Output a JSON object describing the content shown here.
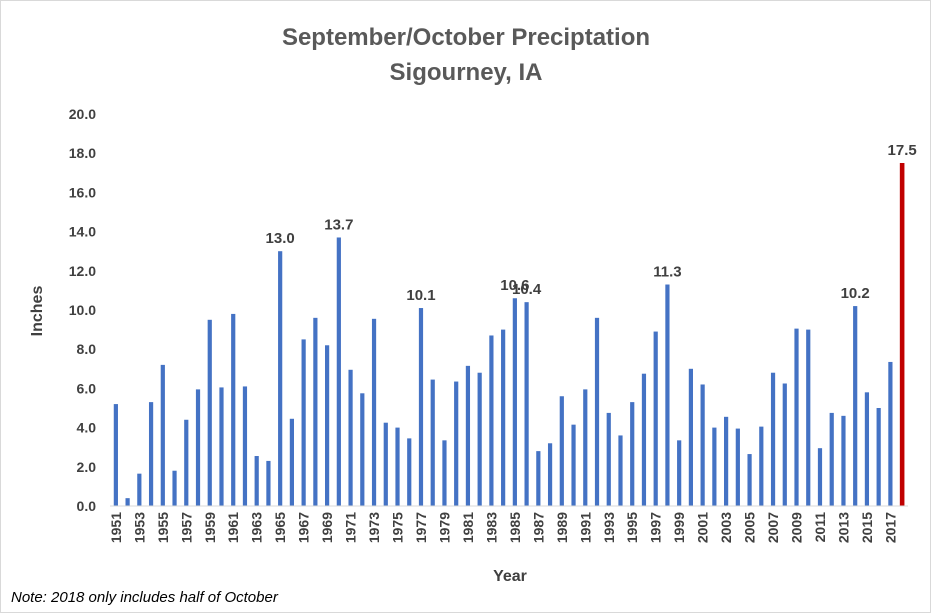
{
  "chart_data": {
    "type": "bar",
    "title": "September/October Preciptation",
    "subtitle": "Sigourney, IA",
    "xlabel": "Year",
    "ylabel": "Inches",
    "ylim": [
      0,
      20
    ],
    "yticks": [
      "0.0",
      "2.0",
      "4.0",
      "6.0",
      "8.0",
      "10.0",
      "12.0",
      "14.0",
      "16.0",
      "18.0",
      "20.0"
    ],
    "grid": false,
    "legend": "none",
    "categories": [
      "1951",
      "1952",
      "1953",
      "1954",
      "1955",
      "1956",
      "1957",
      "1958",
      "1959",
      "1960",
      "1961",
      "1962",
      "1963",
      "1964",
      "1965",
      "1966",
      "1967",
      "1968",
      "1969",
      "1970",
      "1971",
      "1972",
      "1973",
      "1974",
      "1975",
      "1976",
      "1977",
      "1978",
      "1979",
      "1980",
      "1981",
      "1982",
      "1983",
      "1984",
      "1985",
      "1986",
      "1987",
      "1988",
      "1989",
      "1990",
      "1991",
      "1992",
      "1993",
      "1994",
      "1995",
      "1996",
      "1997",
      "1998",
      "1999",
      "2000",
      "2001",
      "2002",
      "2003",
      "2004",
      "2005",
      "2006",
      "2007",
      "2008",
      "2009",
      "2010",
      "2011",
      "2012",
      "2013",
      "2014",
      "2015",
      "2016",
      "2017",
      "2018"
    ],
    "shown_tick_labels": [
      "1951",
      "1953",
      "1955",
      "1957",
      "1959",
      "1961",
      "1963",
      "1965",
      "1967",
      "1969",
      "1971",
      "1973",
      "1975",
      "1977",
      "1979",
      "1981",
      "1983",
      "1985",
      "1987",
      "1989",
      "1991",
      "1993",
      "1995",
      "1997",
      "1999",
      "2001",
      "2003",
      "2005",
      "2007",
      "2009",
      "2011",
      "2013",
      "2015",
      "2017"
    ],
    "values": [
      5.2,
      0.4,
      1.65,
      5.3,
      7.2,
      1.8,
      4.4,
      5.95,
      9.5,
      6.05,
      9.8,
      6.1,
      2.55,
      2.3,
      13.0,
      4.45,
      8.5,
      9.6,
      8.2,
      13.7,
      6.95,
      5.75,
      9.55,
      4.25,
      4.0,
      3.45,
      10.1,
      6.45,
      3.35,
      6.35,
      7.15,
      6.8,
      8.7,
      9.0,
      10.6,
      10.4,
      2.8,
      3.2,
      5.6,
      4.15,
      5.95,
      9.6,
      4.75,
      3.6,
      5.3,
      6.75,
      8.9,
      11.3,
      3.35,
      7.0,
      6.2,
      4.0,
      4.55,
      3.95,
      2.65,
      4.05,
      6.8,
      6.25,
      9.05,
      9.0,
      2.95,
      4.75,
      4.6,
      10.2,
      5.8,
      5.0,
      7.35,
      17.5
    ],
    "data_labels": [
      {
        "category": "1965",
        "text": "13.0"
      },
      {
        "category": "1970",
        "text": "13.7"
      },
      {
        "category": "1977",
        "text": "10.1"
      },
      {
        "category": "1985",
        "text": "10.6"
      },
      {
        "category": "1986",
        "text": "10.4"
      },
      {
        "category": "1998",
        "text": "11.3"
      },
      {
        "category": "2014",
        "text": "10.2"
      },
      {
        "category": "2018",
        "text": "17.5"
      }
    ],
    "colors": {
      "bar": "#4472c4",
      "highlight": "#c00000",
      "highlight_category": "2018"
    },
    "note": "Note: 2018 only includes half of October"
  }
}
